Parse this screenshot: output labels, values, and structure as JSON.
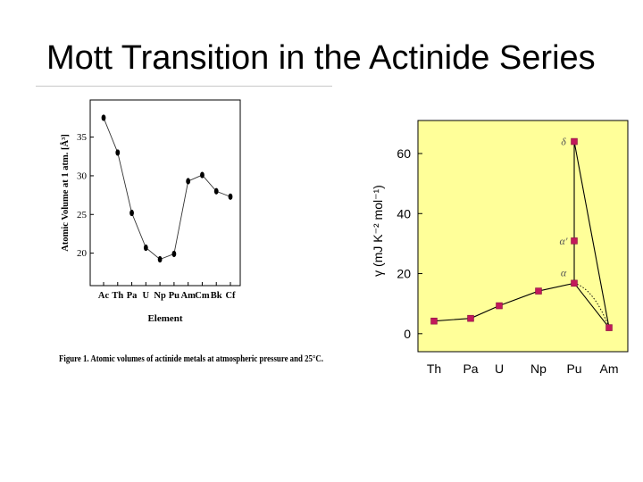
{
  "slide": {
    "title": "Mott Transition in the Actinide Series"
  },
  "chart_data": [
    {
      "type": "line",
      "ylabel": "Atomic Volume at 1 atm. [Å³]",
      "xlabel": "Element",
      "categories": [
        "Ac",
        "Th",
        "Pa",
        "U",
        "Np",
        "Pu",
        "Am",
        "Cm",
        "Bk",
        "Cf"
      ],
      "values": [
        37.5,
        33.0,
        25.2,
        20.7,
        19.2,
        19.9,
        29.3,
        30.1,
        28.0,
        27.3
      ],
      "ylim": [
        15.8,
        39.8
      ],
      "yticks": [
        20,
        25,
        30,
        35
      ],
      "caption": "Figure 1. Atomic volumes of actinide metals at atmospheric pressure and 25°C.",
      "grid": false,
      "marker_color": "#000000"
    },
    {
      "type": "line",
      "ylabel": "γ (mJ K⁻² mol⁻¹)",
      "categories": [
        "Th",
        "Pa",
        "U",
        "Np",
        "Pu",
        "Am"
      ],
      "ylim": [
        -6,
        71
      ],
      "yticks": [
        0,
        20,
        40,
        60
      ],
      "grid": false,
      "background": "#ffff99",
      "marker_color": "#c2185b",
      "series": [
        {
          "points": [
            {
              "x": "Th",
              "y": 4.2
            },
            {
              "x": "Pa",
              "y": 5.1
            },
            {
              "x": "U",
              "y": 9.3
            },
            {
              "x": "Np",
              "y": 14.2
            },
            {
              "x": "Pu",
              "y": 16.8
            },
            {
              "x": "Am",
              "y": 2.0
            }
          ],
          "style": "solid"
        },
        {
          "points": [
            {
              "x": "Pu",
              "y": 16.8
            },
            {
              "x": "Am",
              "y": 2.0
            }
          ],
          "style": "dotted"
        }
      ],
      "extra_points": [
        {
          "x": "Pu",
          "y": 30.9,
          "label": "α′"
        },
        {
          "x": "Pu",
          "y": 64.0,
          "label": "δ"
        }
      ],
      "annotations": [
        {
          "x": "Pu",
          "y": 16.8,
          "text": "α"
        }
      ]
    }
  ]
}
